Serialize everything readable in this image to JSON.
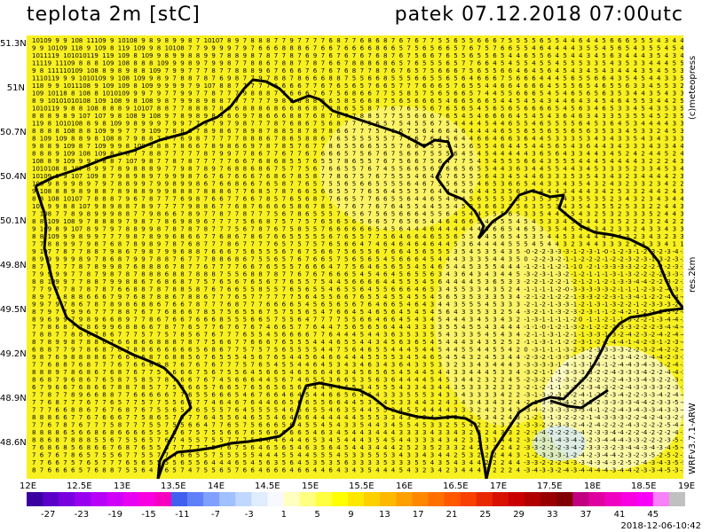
{
  "header": {
    "title": "teplota 2m [stC]",
    "valid_time": "patek 07.12.2018 07:00utc"
  },
  "map": {
    "lat_labels": [
      "51.3N",
      "51N",
      "50.7N",
      "50.4N",
      "50.1N",
      "49.8N",
      "49.5N",
      "49.2N",
      "48.9N",
      "48.6N"
    ],
    "lon_labels": [
      "12E",
      "12.5E",
      "13E",
      "13.5E",
      "14E",
      "14.5E",
      "15E",
      "15.5E",
      "16E",
      "16.5E",
      "17E",
      "17.5E",
      "18E",
      "18.5E",
      "19E"
    ],
    "field_color": "#f8f020",
    "border_color": "#000000"
  },
  "sidebar": {
    "credit": "(c)meteopress",
    "resolution": "res.2km",
    "model": "WRFv3.7.1-ARW"
  },
  "colorbar": {
    "ticks": [
      "-27",
      "-23",
      "-19",
      "-15",
      "-11",
      "-7",
      "-3",
      "1",
      "5",
      "9",
      "13",
      "17",
      "21",
      "25",
      "29",
      "33",
      "37",
      "41",
      "45"
    ],
    "colors": [
      "#3a00a0",
      "#5a00c8",
      "#7a00e0",
      "#9800f0",
      "#b800f8",
      "#d000f8",
      "#e800f0",
      "#f800e0",
      "#f800c0",
      "#4060f0",
      "#6080f8",
      "#80a0ff",
      "#a0c0ff",
      "#c0d8ff",
      "#e0ecff",
      "#f8f8ff",
      "#ffffc0",
      "#ffff80",
      "#ffff40",
      "#ffff00",
      "#ffe800",
      "#ffd000",
      "#ffb800",
      "#ffa000",
      "#ff8800",
      "#ff7000",
      "#ff5800",
      "#f84000",
      "#e82800",
      "#d81000",
      "#c80000",
      "#b00000",
      "#980000",
      "#800000",
      "#c00080",
      "#e000a0",
      "#f000c0",
      "#f800e0",
      "#f800f8",
      "#f880f8",
      "#c0c0c0"
    ]
  },
  "footer": {
    "timestamp": "2018-12-06-10:42"
  }
}
